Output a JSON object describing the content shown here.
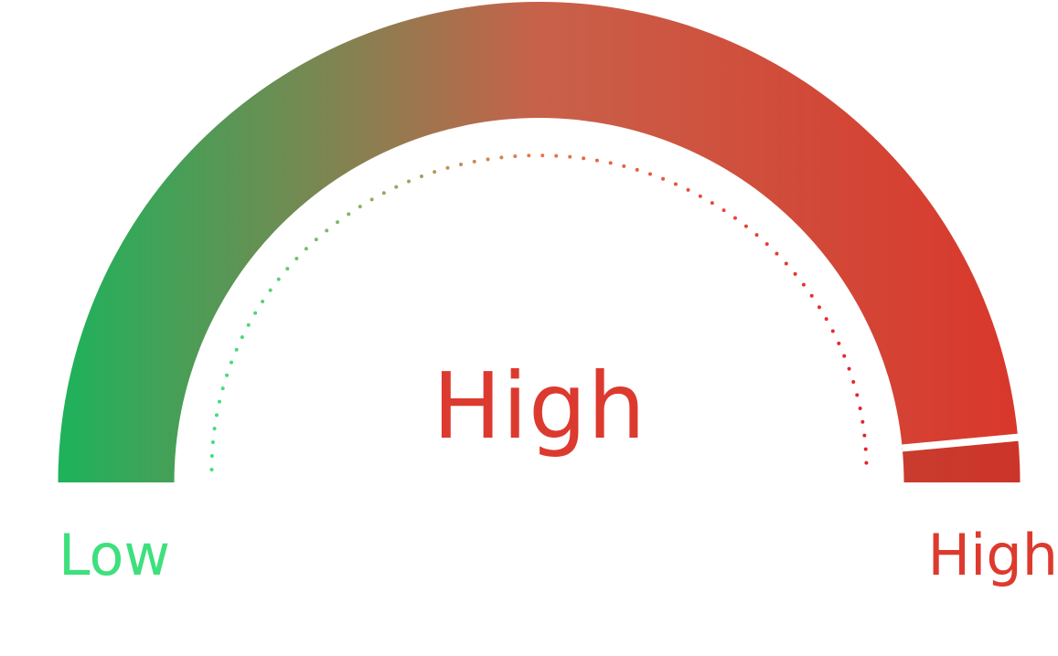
{
  "gauge": {
    "value_label": "High",
    "min_label": "Low",
    "max_label": "High",
    "level_fraction": 0.97,
    "colors": {
      "low": "#1db35b",
      "mid": "#c8614a",
      "high": "#d9372b",
      "low_label": "#3ee07d",
      "high_label": "#dd3a2e",
      "value_text": "#dc3a2e",
      "dot_low": "#3ee07d",
      "dot_high": "#e2242a",
      "needle": "#ffffff"
    }
  }
}
